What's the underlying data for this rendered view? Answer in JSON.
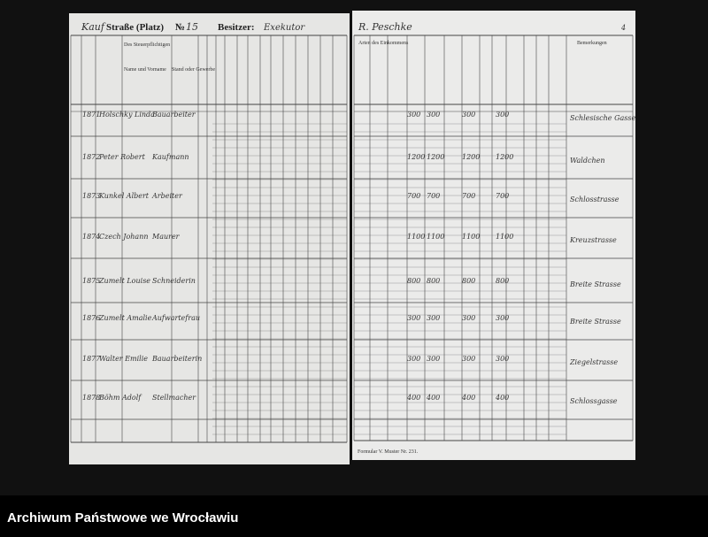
{
  "header": {
    "street_label": "Straße (Platz)",
    "number_label": "№",
    "number": "15",
    "owner_label": "Besitzer:",
    "owner": "Exekutor",
    "right_owner": "R. Peschke",
    "page_no": "4"
  },
  "columns": {
    "left": [
      "Des Steuerpflichtigen",
      "Name und Vorname",
      "Stand oder Gewerbe"
    ],
    "right": [
      "Arten des Einkommens",
      "Bemerkungen"
    ]
  },
  "rows": [
    {
      "no": "1871",
      "name": "Holschky Linda",
      "occupation": "Bauarbeiter",
      "amounts": [
        "300",
        "300",
        "300",
        "300"
      ],
      "note": "Schlesische Gasse"
    },
    {
      "no": "1872",
      "name": "Peter Robert",
      "occupation": "Kaufmann",
      "amounts": [
        "1200",
        "1200",
        "1200",
        "1200"
      ],
      "note": "Waldchen"
    },
    {
      "no": "1873",
      "name": "Kunkel Albert",
      "occupation": "Arbeiter",
      "amounts": [
        "700",
        "700",
        "700",
        "700"
      ],
      "note": "Schlosstrasse"
    },
    {
      "no": "1874",
      "name": "Czech Johann",
      "occupation": "Maurer",
      "amounts": [
        "1100",
        "1100",
        "1100",
        "1100"
      ],
      "note": "Kreuzstrasse"
    },
    {
      "no": "1875",
      "name": "Zumelt Louise",
      "occupation": "Schneiderin",
      "amounts": [
        "800",
        "800",
        "800",
        "800"
      ],
      "note": "Breite Strasse"
    },
    {
      "no": "1876",
      "name": "Zumelt Amalie",
      "occupation": "Aufwartefrau",
      "amounts": [
        "300",
        "300",
        "300",
        "300"
      ],
      "note": "Breite Strasse"
    },
    {
      "no": "1877",
      "name": "Walter Emilie",
      "occupation": "Bauarbeiterin",
      "amounts": [
        "300",
        "300",
        "300",
        "300"
      ],
      "note": "Ziegelstrasse"
    },
    {
      "no": "1878",
      "name": "Böhm Adolf",
      "occupation": "Stellmacher",
      "amounts": [
        "400",
        "400",
        "400",
        "400"
      ],
      "note": "Schlossgasse"
    }
  ],
  "footer": {
    "form": "Formular V. Muster Nr. 231.",
    "archive": "Archiwum Państwowe we Wrocławiu"
  }
}
